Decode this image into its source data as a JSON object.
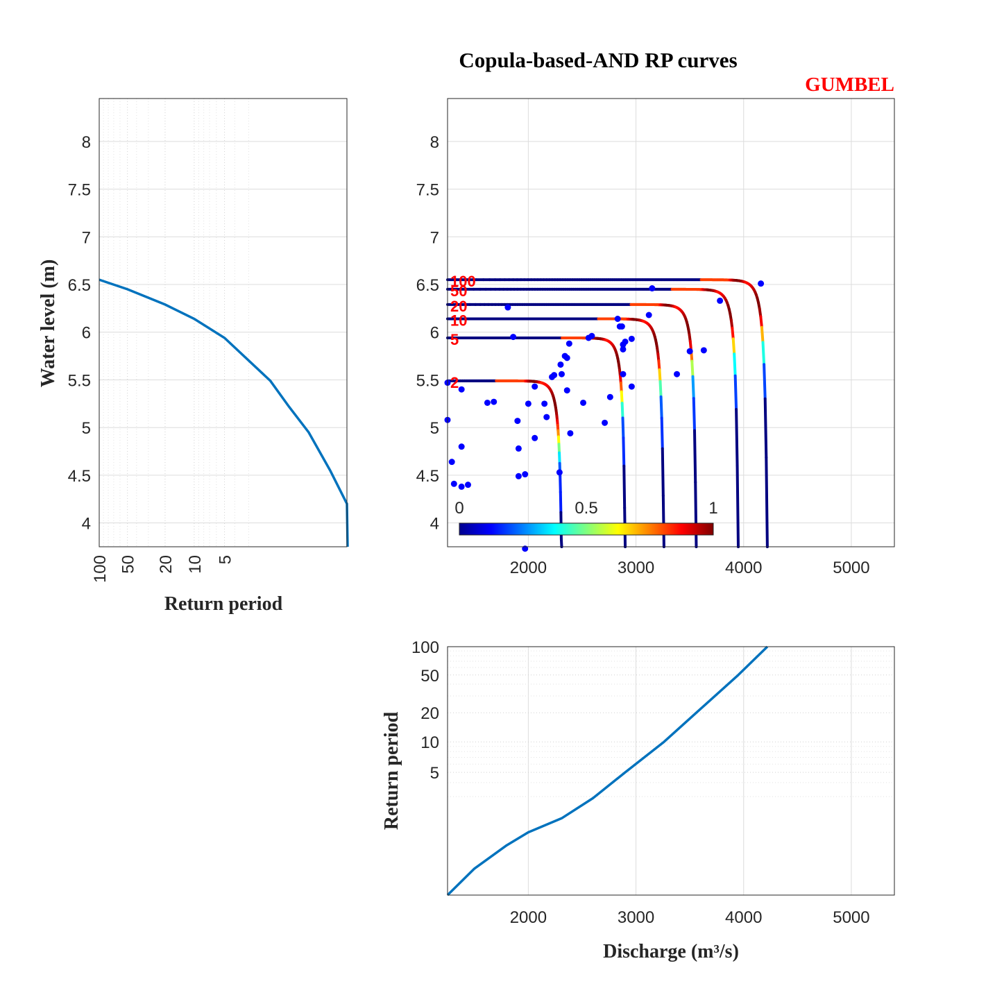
{
  "figure": {
    "title": "Copula-based-AND RP curves",
    "subtitle": "GUMBEL",
    "subtitle_color": "#ff0000",
    "curve_color": "#0072bd",
    "point_color": "#0000ff",
    "rp_label_color": "#ff0000"
  },
  "chart_data": [
    {
      "id": "joint",
      "type": "line",
      "title": "Copula-based-AND RP curves",
      "subtitle": "GUMBEL",
      "xlim": [
        1250,
        5400
      ],
      "ylim": [
        3.75,
        8.45
      ],
      "xticks": [
        2000,
        3000,
        4000,
        5000
      ],
      "yticks": [
        4,
        4.5,
        5,
        5.5,
        6,
        6.5,
        7,
        7.5,
        8
      ],
      "grid": true,
      "colormap": "jet",
      "colorbar": {
        "ticks": [
          "0",
          "0.5",
          "1"
        ],
        "location": "inside-bottom-left"
      },
      "series": [
        {
          "name": "2",
          "level": 5.49,
          "x_vertical": 2310,
          "knee_x": 2050
        },
        {
          "name": "5",
          "level": 5.94,
          "x_vertical": 2900,
          "knee_x": 2660
        },
        {
          "name": "10",
          "level": 6.14,
          "x_vertical": 3260,
          "knee_x": 3000
        },
        {
          "name": "20",
          "level": 6.29,
          "x_vertical": 3560,
          "knee_x": 3300
        },
        {
          "name": "50",
          "level": 6.45,
          "x_vertical": 3950,
          "knee_x": 3690
        },
        {
          "name": "100",
          "level": 6.55,
          "x_vertical": 4220,
          "knee_x": 3950
        }
      ],
      "points": [
        [
          1250,
          5.47
        ],
        [
          1250,
          5.08
        ],
        [
          1290,
          4.64
        ],
        [
          1310,
          4.41
        ],
        [
          1380,
          4.38
        ],
        [
          1440,
          4.4
        ],
        [
          1380,
          4.8
        ],
        [
          1380,
          5.4
        ],
        [
          1620,
          5.26
        ],
        [
          1680,
          5.27
        ],
        [
          1810,
          6.26
        ],
        [
          1860,
          5.95
        ],
        [
          1900,
          5.07
        ],
        [
          1910,
          4.78
        ],
        [
          1910,
          4.49
        ],
        [
          1970,
          4.51
        ],
        [
          2000,
          5.25
        ],
        [
          1970,
          3.73
        ],
        [
          2060,
          5.43
        ],
        [
          2060,
          4.89
        ],
        [
          2150,
          5.25
        ],
        [
          2170,
          5.11
        ],
        [
          2220,
          5.53
        ],
        [
          2240,
          5.55
        ],
        [
          2300,
          5.66
        ],
        [
          2310,
          5.56
        ],
        [
          2340,
          5.75
        ],
        [
          2360,
          5.73
        ],
        [
          2380,
          5.88
        ],
        [
          2360,
          5.39
        ],
        [
          2290,
          4.53
        ],
        [
          2390,
          4.94
        ],
        [
          2560,
          5.94
        ],
        [
          2590,
          5.96
        ],
        [
          2510,
          5.26
        ],
        [
          2710,
          5.05
        ],
        [
          2760,
          5.32
        ],
        [
          2830,
          6.14
        ],
        [
          2850,
          6.06
        ],
        [
          2870,
          6.06
        ],
        [
          2880,
          5.87
        ],
        [
          2880,
          5.82
        ],
        [
          2880,
          5.56
        ],
        [
          2900,
          5.9
        ],
        [
          2960,
          5.93
        ],
        [
          2960,
          5.43
        ],
        [
          3120,
          6.18
        ],
        [
          3150,
          6.46
        ],
        [
          3380,
          5.56
        ],
        [
          3500,
          5.8
        ],
        [
          3630,
          5.81
        ],
        [
          3780,
          6.33
        ],
        [
          4160,
          6.51
        ]
      ]
    },
    {
      "id": "water-level-marginal",
      "type": "line",
      "xlabel": "Return period",
      "ylabel": "Water level (m)",
      "xscale": "reverse-return-period",
      "xticks": [
        "100",
        "50",
        "20",
        "10",
        "5"
      ],
      "yticks": [
        4,
        4.5,
        5,
        5.5,
        6,
        6.5,
        7,
        7.5,
        8
      ],
      "ylim": [
        3.75,
        8.45
      ],
      "grid": true,
      "series": [
        {
          "x_return_period": [
            100,
            50,
            20,
            10,
            5,
            2,
            1.5,
            1.2,
            1.05,
            1.01
          ],
          "y": [
            6.55,
            6.45,
            6.29,
            6.14,
            5.94,
            5.49,
            5.22,
            4.95,
            4.55,
            4.2
          ]
        }
      ]
    },
    {
      "id": "discharge-marginal",
      "type": "line",
      "xlabel": "Discharge (m³/s)",
      "ylabel": "Return period",
      "xlim": [
        1250,
        5400
      ],
      "xticks": [
        2000,
        3000,
        4000,
        5000
      ],
      "yticks": [
        "100",
        "50",
        "20",
        "10",
        "5"
      ],
      "grid": true,
      "series": [
        {
          "x": [
            1250,
            1500,
            1800,
            2000,
            2310,
            2600,
            2900,
            3260,
            3560,
            3950,
            4220
          ],
          "y_return_period": [
            1.01,
            1.1,
            1.35,
            1.6,
            2,
            2.9,
            5,
            10,
            20,
            50,
            100
          ]
        }
      ]
    }
  ]
}
